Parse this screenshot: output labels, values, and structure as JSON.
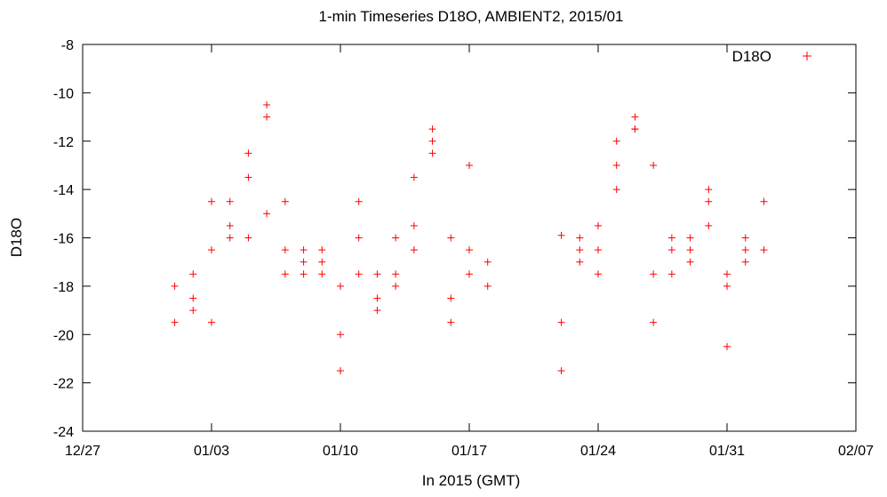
{
  "chart_data": {
    "type": "scatter",
    "title": "1-min Timeseries D18O, AMBIENT2, 2015/01",
    "xlabel": "In 2015 (GMT)",
    "ylabel": "D18O",
    "xlim": [
      "2014-12-27",
      "2015-02-07"
    ],
    "ylim": [
      -24,
      -8
    ],
    "x_ticks": [
      "12/27",
      "01/03",
      "01/10",
      "01/17",
      "01/24",
      "01/31",
      "02/07"
    ],
    "y_ticks": [
      "-8",
      "-10",
      "-12",
      "-14",
      "-16",
      "-18",
      "-20",
      "-22",
      "-24"
    ],
    "marker": "plus",
    "color": "#ff0000",
    "grid": false,
    "legend_position": "top-right",
    "series": [
      {
        "name": "D18O",
        "x": [
          "2015-01-01",
          "2015-01-01",
          "2015-01-02",
          "2015-01-02",
          "2015-01-02",
          "2015-01-03",
          "2015-01-03",
          "2015-01-03",
          "2015-01-04",
          "2015-01-04",
          "2015-01-04",
          "2015-01-05",
          "2015-01-05",
          "2015-01-05",
          "2015-01-06",
          "2015-01-06",
          "2015-01-06",
          "2015-01-07",
          "2015-01-07",
          "2015-01-07",
          "2015-01-08",
          "2015-01-08",
          "2015-01-08",
          "2015-01-09",
          "2015-01-09",
          "2015-01-09",
          "2015-01-10",
          "2015-01-10",
          "2015-01-10",
          "2015-01-11",
          "2015-01-11",
          "2015-01-11",
          "2015-01-12",
          "2015-01-12",
          "2015-01-12",
          "2015-01-13",
          "2015-01-13",
          "2015-01-13",
          "2015-01-14",
          "2015-01-14",
          "2015-01-14",
          "2015-01-15",
          "2015-01-15",
          "2015-01-15",
          "2015-01-16",
          "2015-01-16",
          "2015-01-16",
          "2015-01-17",
          "2015-01-17",
          "2015-01-17",
          "2015-01-18",
          "2015-01-18",
          "2015-01-22",
          "2015-01-22",
          "2015-01-22",
          "2015-01-23",
          "2015-01-23",
          "2015-01-23",
          "2015-01-24",
          "2015-01-24",
          "2015-01-24",
          "2015-01-25",
          "2015-01-25",
          "2015-01-25",
          "2015-01-26",
          "2015-01-26",
          "2015-01-26",
          "2015-01-27",
          "2015-01-27",
          "2015-01-27",
          "2015-01-28",
          "2015-01-28",
          "2015-01-28",
          "2015-01-29",
          "2015-01-29",
          "2015-01-29",
          "2015-01-30",
          "2015-01-30",
          "2015-01-30",
          "2015-01-31",
          "2015-01-31",
          "2015-01-31",
          "2015-02-01",
          "2015-02-01",
          "2015-02-01",
          "2015-02-02",
          "2015-02-02"
        ],
        "y": [
          -19.5,
          -18.0,
          -18.5,
          -19.0,
          -17.5,
          -14.5,
          -16.5,
          -19.5,
          -15.5,
          -16.0,
          -14.5,
          -16.0,
          -13.5,
          -12.5,
          -11.0,
          -10.5,
          -15.0,
          -14.5,
          -16.5,
          -17.5,
          -17.5,
          -17.0,
          -16.5,
          -17.5,
          -16.5,
          -17.0,
          -20.0,
          -21.5,
          -18.0,
          -17.5,
          -16.0,
          -14.5,
          -17.5,
          -18.5,
          -19.0,
          -18.0,
          -17.5,
          -16.0,
          -15.5,
          -16.5,
          -13.5,
          -12.0,
          -11.5,
          -12.5,
          -18.5,
          -19.5,
          -16.0,
          -13.0,
          -16.5,
          -17.5,
          -18.0,
          -17.0,
          -15.9,
          -19.5,
          -21.5,
          -17.0,
          -16.5,
          -16.0,
          -15.5,
          -16.5,
          -17.5,
          -14.0,
          -13.0,
          -12.0,
          -11.5,
          -11.0,
          -11.5,
          -13.0,
          -19.5,
          -17.5,
          -16.5,
          -16.0,
          -17.5,
          -16.0,
          -16.5,
          -17.0,
          -14.5,
          -14.0,
          -15.5,
          -18.0,
          -20.5,
          -17.5,
          -16.5,
          -17.0,
          -16.0,
          -16.5,
          -14.5
        ]
      }
    ]
  }
}
